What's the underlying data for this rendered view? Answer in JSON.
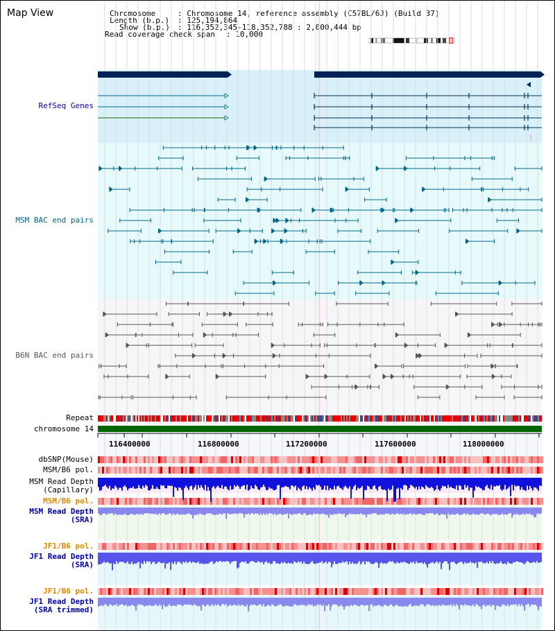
{
  "app": {
    "title": "Map View"
  },
  "header": {
    "chromosome_label": "Chromosome",
    "chromosome_value": ": Chromosome 14, reference assembly (C57BL/6J) (Build 37)",
    "length_label": "Length (b.p.)",
    "length_value": ": 125,194,864",
    "show_label": "Show (b.p.)",
    "show_value": ": 116,352,345-118,352,788 : 2,000,444 bp",
    "coverage_label": "Read coverage check span",
    "coverage_value": ": 10,000"
  },
  "tracks": {
    "refseq": "RefSeq Genes",
    "msm_bac": "MSM BAC end pairs",
    "b6n_bac": "B6N BAC end pairs",
    "repeat": "Repeat",
    "chromosome": "chromosome 14",
    "dbsnp": "dbSNP(Mouse)",
    "msm_b6_pol_1": "MSM/B6 pol.",
    "msm_read_depth_cap_1": "MSM Read Depth",
    "msm_read_depth_cap_2": "(Capillary)",
    "msm_b6_pol_2": "MSM/B6 pol.",
    "msm_read_depth_sra_1": "MSM Read Depth",
    "msm_read_depth_sra_2": "(SRA)",
    "jf1_b6_pol_1": "JF1/B6 pol.",
    "jf1_read_depth_sra_1": "JF1 Read Depth",
    "jf1_read_depth_sra_2": "(SRA)",
    "jf1_b6_pol_2": "JF1/B6 pol.",
    "jf1_read_depth_trim_1": "JF1 Read Depth",
    "jf1_read_depth_trim_2": "(SRA trimmed)"
  },
  "axis": {
    "ticks": [
      "116400000",
      "116800000",
      "117200000",
      "117600000",
      "118000000"
    ]
  },
  "colors": {
    "label_blue": "#0000aa",
    "label_teal": "#006688",
    "label_gray": "#555555",
    "label_orange": "#dd8800",
    "refseq_bar": "#002255",
    "chrom_bar": "#006600",
    "depth_blue": "#0000dd",
    "depth_light": "#7777ee"
  }
}
